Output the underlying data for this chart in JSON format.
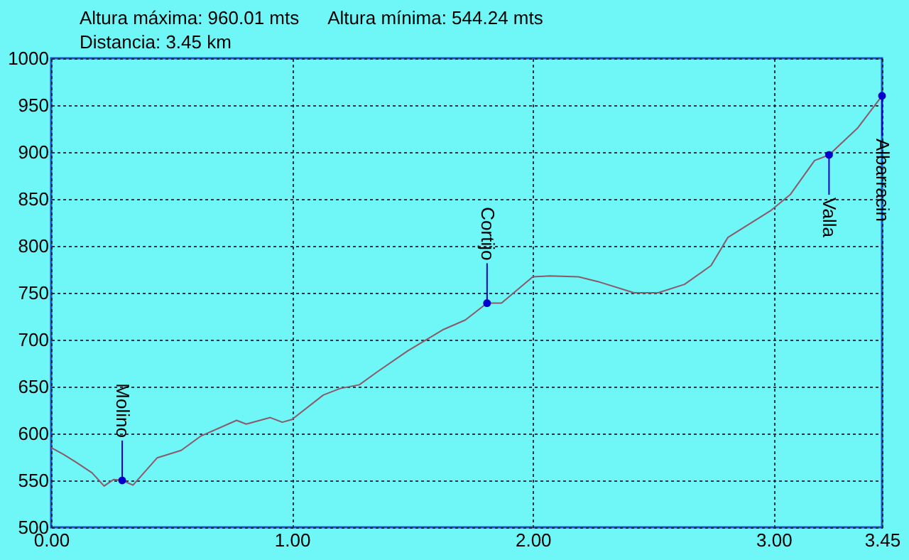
{
  "chart_data": {
    "type": "line",
    "annotations": [
      "Altura máxima: 960.01 mts",
      "Altura mínima: 544.24 mts",
      "Distancia: 3.45 km",
      {
        "text": "Molino",
        "x": 0.295,
        "y": 550
      },
      {
        "text": "Cortijo",
        "x": 1.81,
        "y": 739
      },
      {
        "text": "Valla",
        "x": 3.23,
        "y": 897
      },
      {
        "text": "Albarracin",
        "x": 3.45,
        "y": 960
      }
    ],
    "x": [
      0,
      0.05,
      0.1,
      0.17,
      0.22,
      0.26,
      0.295,
      0.34,
      0.44,
      0.54,
      0.62,
      0.77,
      0.81,
      0.91,
      0.96,
      1.0,
      1.13,
      1.2,
      1.28,
      1.35,
      1.48,
      1.63,
      1.72,
      1.81,
      1.87,
      2.0,
      2.07,
      2.19,
      2.27,
      2.42,
      2.52,
      2.63,
      2.74,
      2.81,
      2.99,
      3.07,
      3.17,
      3.23,
      3.35,
      3.45
    ],
    "series": [
      {
        "color": "#8a5a6a",
        "values": [
          585,
          578,
          570,
          558,
          544,
          551,
          550,
          545,
          574,
          582,
          597,
          614,
          610,
          617,
          612,
          615,
          641,
          648,
          652,
          665,
          688,
          711,
          721,
          739,
          739,
          767,
          768,
          767,
          762,
          750,
          750,
          759,
          779,
          809,
          838,
          855,
          891,
          897,
          926,
          960
        ]
      }
    ],
    "xlim": [
      0,
      3.45
    ],
    "ylim": [
      500,
      1000
    ],
    "xticks": [
      {
        "value": 0,
        "label": "0.00"
      },
      {
        "value": 1,
        "label": "1.00"
      },
      {
        "value": 2,
        "label": "2.00"
      },
      {
        "value": 3,
        "label": "3.00"
      },
      {
        "value": 3.45,
        "label": "3.45"
      }
    ],
    "yticks": [
      500,
      550,
      600,
      650,
      700,
      750,
      800,
      850,
      900,
      950,
      1000
    ],
    "grid": true,
    "marker": "none",
    "line_style": "solid"
  }
}
